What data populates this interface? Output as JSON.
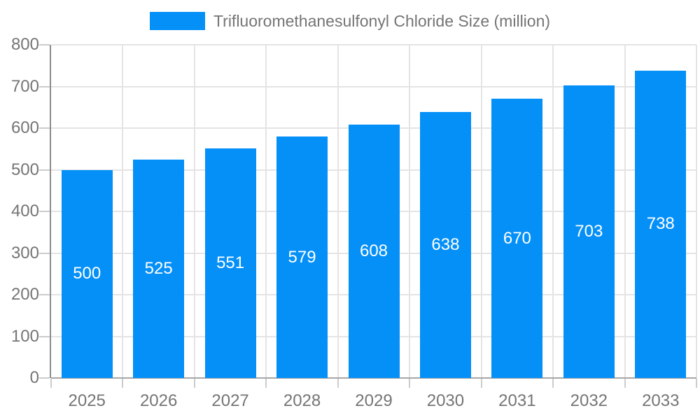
{
  "legend": {
    "position": "top",
    "swatch_color": "#0590f8"
  },
  "chart_data": {
    "type": "bar",
    "title": "Trifluoromethanesulfonyl Chloride Size (million)",
    "series_name": "Trifluoromethanesulfonyl Chloride Size (million)",
    "categories": [
      "2025",
      "2026",
      "2027",
      "2028",
      "2029",
      "2030",
      "2031",
      "2032",
      "2033"
    ],
    "values": [
      500,
      525,
      551,
      579,
      608,
      638,
      670,
      703,
      738
    ],
    "xlabel": "",
    "ylabel": "",
    "ylim": [
      0,
      800
    ],
    "ytick_interval": 100,
    "ytick_labels": [
      "0",
      "100",
      "200",
      "300",
      "400",
      "500",
      "600",
      "700",
      "800"
    ],
    "grid": true,
    "legend_position": "top",
    "bar_color": "#0590f8",
    "value_label_color": "#ffffff",
    "value_label_position": "inside-middle",
    "axis_label_color": "#757575",
    "gridline_color": "#e4e4e4",
    "axis_line_color": "#999999",
    "tick_color": "#cccccc"
  }
}
